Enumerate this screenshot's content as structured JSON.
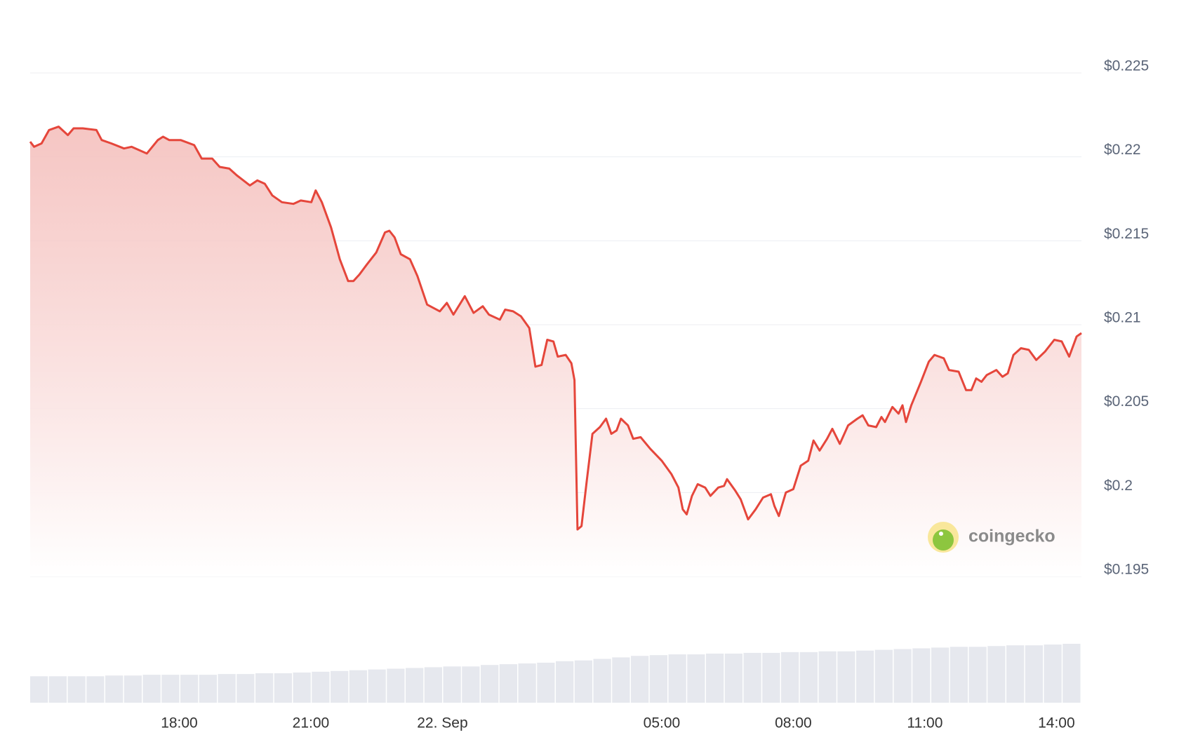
{
  "chart_data": {
    "type": "area",
    "x": [
      14.6,
      14.69,
      14.86,
      15.03,
      15.25,
      15.46,
      15.59,
      15.8,
      16.11,
      16.23,
      16.45,
      16.74,
      16.91,
      17.26,
      17.51,
      17.63,
      17.77,
      18.03,
      18.34,
      18.51,
      18.75,
      18.92,
      19.14,
      19.31,
      19.61,
      19.78,
      19.95,
      20.12,
      20.34,
      20.6,
      20.77,
      21.01,
      21.11,
      21.25,
      21.46,
      21.66,
      21.85,
      21.97,
      22.11,
      22.28,
      22.49,
      22.69,
      22.79,
      22.91,
      23.05,
      23.26,
      23.43,
      23.65,
      23.94,
      24.1,
      24.25,
      24.51,
      24.71,
      24.92,
      25.06,
      25.31,
      25.43,
      25.61,
      25.79,
      25.98,
      26.12,
      26.26,
      26.39,
      26.53,
      26.63,
      26.81,
      26.94,
      27.01,
      27.08,
      27.17,
      27.29,
      27.42,
      27.59,
      27.73,
      27.85,
      27.97,
      28.07,
      28.23,
      28.35,
      28.52,
      28.74,
      29.0,
      29.22,
      29.38,
      29.48,
      29.57,
      29.69,
      29.82,
      29.99,
      30.11,
      30.29,
      30.42,
      30.49,
      30.68,
      30.8,
      30.97,
      31.14,
      31.31,
      31.49,
      31.57,
      31.67,
      31.83,
      32.0,
      32.17,
      32.34,
      32.46,
      32.6,
      32.77,
      32.89,
      33.06,
      33.25,
      33.46,
      33.58,
      33.71,
      33.89,
      34.01,
      34.09,
      34.26,
      34.4,
      34.49,
      34.57,
      34.69,
      34.91,
      35.09,
      35.22,
      35.43,
      35.55,
      35.77,
      35.94,
      36.06,
      36.17,
      36.29,
      36.41,
      36.63,
      36.77,
      36.89,
      37.02,
      37.19,
      37.37,
      37.54,
      37.74,
      37.95,
      38.12,
      38.29,
      38.46,
      38.57
    ],
    "series": [
      {
        "color": "#e5463b",
        "values": [
          0.2209,
          0.2206,
          0.2208,
          0.2216,
          0.2218,
          0.2213,
          0.2217,
          0.2217,
          0.2216,
          0.221,
          0.2208,
          0.2205,
          0.2206,
          0.2202,
          0.221,
          0.2212,
          0.221,
          0.221,
          0.2207,
          0.2199,
          0.2199,
          0.2194,
          0.2193,
          0.2189,
          0.2183,
          0.2186,
          0.2184,
          0.2177,
          0.2173,
          0.2172,
          0.2174,
          0.2173,
          0.218,
          0.2173,
          0.2158,
          0.2139,
          0.2126,
          0.2126,
          0.213,
          0.2136,
          0.2143,
          0.2155,
          0.2156,
          0.2152,
          0.2142,
          0.2139,
          0.2129,
          0.2112,
          0.2108,
          0.2113,
          0.2106,
          0.2117,
          0.2107,
          0.2111,
          0.2106,
          0.2103,
          0.2109,
          0.2108,
          0.2105,
          0.2098,
          0.2075,
          0.2076,
          0.2091,
          0.209,
          0.2081,
          0.2082,
          0.2077,
          0.2067,
          0.1978,
          0.198,
          0.2007,
          0.2035,
          0.2039,
          0.2044,
          0.2035,
          0.2037,
          0.2044,
          0.204,
          0.2032,
          0.2033,
          0.2026,
          0.2019,
          0.2011,
          0.2003,
          0.199,
          0.1987,
          0.1998,
          0.2005,
          0.2003,
          0.1998,
          0.2003,
          0.2004,
          0.2008,
          0.2001,
          0.1996,
          0.1984,
          0.199,
          0.1997,
          0.1999,
          0.1992,
          0.1986,
          0.2,
          0.2002,
          0.2016,
          0.2019,
          0.2031,
          0.2025,
          0.2032,
          0.2038,
          0.2029,
          0.204,
          0.2044,
          0.2046,
          0.204,
          0.2039,
          0.2045,
          0.2042,
          0.2051,
          0.2047,
          0.2052,
          0.2042,
          0.2052,
          0.2066,
          0.2078,
          0.2082,
          0.208,
          0.2073,
          0.2072,
          0.2061,
          0.2061,
          0.2068,
          0.2066,
          0.207,
          0.2073,
          0.2069,
          0.2071,
          0.2082,
          0.2086,
          0.2085,
          0.2079,
          0.2084,
          0.2091,
          0.209,
          0.2081,
          0.2093,
          0.2095
        ]
      }
    ],
    "xlim": [
      14.6,
      38.57
    ],
    "xticks": [
      {
        "value": 18,
        "label": "18:00"
      },
      {
        "value": 21,
        "label": "21:00"
      },
      {
        "value": 24,
        "label": "22. Sep"
      },
      {
        "value": 29,
        "label": "05:00"
      },
      {
        "value": 32,
        "label": "08:00"
      },
      {
        "value": 35,
        "label": "11:00"
      },
      {
        "value": 38,
        "label": "14:00"
      }
    ],
    "ylim": [
      0.195,
      0.225
    ],
    "yticks": [
      {
        "value": 0.195,
        "label": "$0.195"
      },
      {
        "value": 0.2,
        "label": "$0.2"
      },
      {
        "value": 0.205,
        "label": "$0.205"
      },
      {
        "value": 0.21,
        "label": "$0.21"
      },
      {
        "value": 0.215,
        "label": "$0.215"
      },
      {
        "value": 0.22,
        "label": "$0.22"
      },
      {
        "value": 0.225,
        "label": "$0.225"
      }
    ],
    "grid": true,
    "volume": {
      "color": "#e6e8ee",
      "values": [
        35,
        35,
        35,
        35,
        36,
        36,
        37,
        37,
        37,
        37,
        38,
        38,
        39,
        39,
        40,
        41,
        42,
        43,
        44,
        45,
        46,
        47,
        48,
        48,
        50,
        51,
        52,
        53,
        55,
        56,
        58,
        60,
        62,
        63,
        64,
        64,
        65,
        65,
        66,
        66,
        67,
        67,
        68,
        68,
        69,
        70,
        71,
        72,
        73,
        74,
        74,
        75,
        76,
        76,
        77,
        78
      ]
    },
    "watermark": "coingecko"
  }
}
